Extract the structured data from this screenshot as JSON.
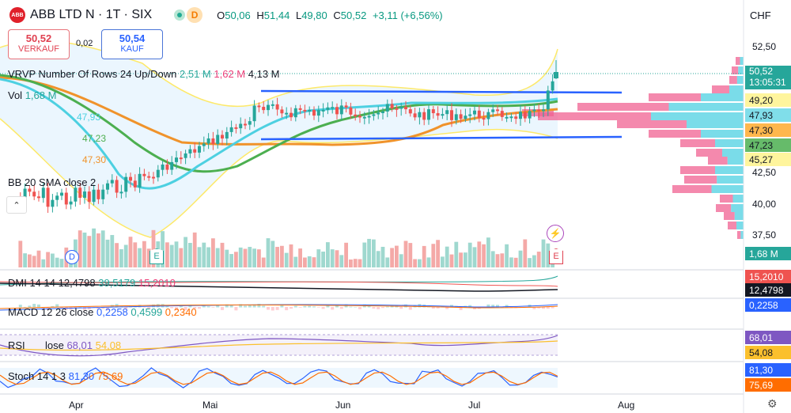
{
  "header": {
    "logo": "ABB",
    "symbol": "ABB LTD N · 1T · SIX",
    "status_d": "D",
    "ohlc": {
      "o_label": "O",
      "o": "50,06",
      "h_label": "H",
      "h": "51,44",
      "l_label": "L",
      "l": "49,80",
      "c_label": "C",
      "c": "50,52",
      "change": "+3,11 (+6,56%)"
    },
    "currency": "CHF"
  },
  "trade": {
    "sell_price": "50,52",
    "sell_label": "VERKAUF",
    "spread": "0,02",
    "buy_price": "50,54",
    "buy_label": "KAUF"
  },
  "indicators": {
    "vrvp": {
      "name": "VRVP Number Of Rows 24 Up/Down",
      "up": "2,51 M",
      "down": "1,62 M",
      "total": "4,13 M"
    },
    "vol": {
      "name": "Vol",
      "value": "1,68 M"
    },
    "bb": {
      "name": "BB 20 SMA close 2"
    },
    "ma_labels": {
      "m1": "47,93",
      "m2": "47,23",
      "m3": "47,30"
    },
    "dmi": {
      "name": "DMI 14 14",
      "v1": "12,4798",
      "v2": "39,5179",
      "v3": "15,2010"
    },
    "macd": {
      "name": "MACD 12 26 close",
      "v1": "0,2258",
      "v2": "0,4599",
      "v3": "0,2340"
    },
    "rsi": {
      "name": "RSI",
      "src": "lose",
      "v1": "68,01",
      "v2": "54,08"
    },
    "stoch": {
      "name": "Stoch 14 1 3",
      "v1": "81,30",
      "v2": "75,69"
    }
  },
  "price_axis": {
    "ticks": [
      "52,50",
      "42,50",
      "40,00",
      "37,50"
    ],
    "last_price": "50,52",
    "countdown": "13:05:31",
    "tags": [
      {
        "value": "49,20",
        "color": "#fff59d"
      },
      {
        "value": "47,93",
        "color": "#80deea"
      },
      {
        "value": "47,30",
        "color": "#ffb74d"
      },
      {
        "value": "47,23",
        "color": "#66bb6a"
      },
      {
        "value": "45,27",
        "color": "#fff59d"
      }
    ],
    "volume_tag": "1,68 M",
    "dmi_tags": [
      "15,2010",
      "12,4798"
    ],
    "macd_tag": "0,2258",
    "rsi_tags": [
      "68,01",
      "54,08"
    ],
    "stoch_tags": [
      "81,30",
      "75,69"
    ]
  },
  "time_axis": {
    "months": [
      "Apr",
      "Mai",
      "Jun",
      "Jul",
      "Aug"
    ]
  },
  "events": {
    "dividend": "D",
    "earnings": "E"
  },
  "colors": {
    "up": "#26a69a",
    "down": "#ef5350",
    "accent": "#2962ff"
  }
}
